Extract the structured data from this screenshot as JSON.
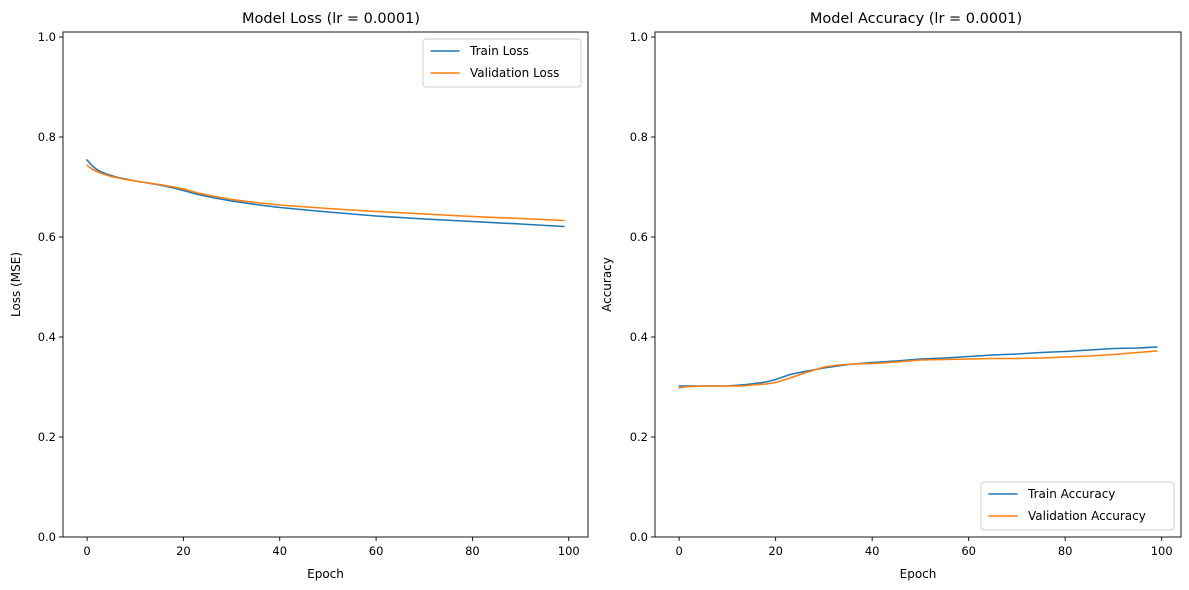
{
  "chart_data": [
    {
      "type": "line",
      "title": "Model Loss (lr = 0.0001)",
      "xlabel": "Epoch",
      "ylabel": "Loss (MSE)",
      "xlim": [
        -5,
        104
      ],
      "ylim": [
        0,
        1.01
      ],
      "xticks": [
        0,
        20,
        40,
        60,
        80,
        100
      ],
      "yticks": [
        0.0,
        0.2,
        0.4,
        0.6,
        0.8,
        1.0
      ],
      "xtick_labels": [
        "0",
        "20",
        "40",
        "60",
        "80",
        "100"
      ],
      "ytick_labels": [
        "0.0",
        "0.2",
        "0.4",
        "0.6",
        "0.8",
        "1.0"
      ],
      "grid": false,
      "legend_position": "upper right",
      "series": [
        {
          "name": "Train Loss",
          "color": "#1f77b4",
          "x": [
            0,
            1,
            2,
            3,
            4,
            5,
            6,
            8,
            10,
            12,
            15,
            18,
            20,
            23,
            26,
            30,
            35,
            40,
            50,
            60,
            70,
            80,
            90,
            99
          ],
          "y": [
            0.754,
            0.743,
            0.735,
            0.73,
            0.726,
            0.723,
            0.72,
            0.716,
            0.712,
            0.709,
            0.704,
            0.698,
            0.693,
            0.685,
            0.679,
            0.672,
            0.665,
            0.659,
            0.65,
            0.642,
            0.636,
            0.631,
            0.626,
            0.621
          ]
        },
        {
          "name": "Validation Loss",
          "color": "#ff7f0e",
          "x": [
            0,
            1,
            2,
            3,
            4,
            5,
            6,
            8,
            10,
            12,
            15,
            18,
            20,
            23,
            26,
            30,
            35,
            40,
            50,
            60,
            70,
            80,
            90,
            99
          ],
          "y": [
            0.743,
            0.736,
            0.731,
            0.727,
            0.724,
            0.721,
            0.719,
            0.715,
            0.712,
            0.709,
            0.705,
            0.7,
            0.696,
            0.688,
            0.682,
            0.675,
            0.669,
            0.664,
            0.657,
            0.651,
            0.646,
            0.641,
            0.637,
            0.633
          ]
        }
      ]
    },
    {
      "type": "line",
      "title": "Model Accuracy (lr = 0.0001)",
      "xlabel": "Epoch",
      "ylabel": "Accuracy",
      "xlim": [
        -5,
        104
      ],
      "ylim": [
        0,
        1.01
      ],
      "xticks": [
        0,
        20,
        40,
        60,
        80,
        100
      ],
      "yticks": [
        0.0,
        0.2,
        0.4,
        0.6,
        0.8,
        1.0
      ],
      "xtick_labels": [
        "0",
        "20",
        "40",
        "60",
        "80",
        "100"
      ],
      "ytick_labels": [
        "0.0",
        "0.2",
        "0.4",
        "0.6",
        "0.8",
        "1.0"
      ],
      "grid": false,
      "legend_position": "lower right",
      "series": [
        {
          "name": "Train Accuracy",
          "color": "#1f77b4",
          "x": [
            0,
            5,
            10,
            14,
            18,
            20,
            23,
            26,
            30,
            35,
            40,
            45,
            50,
            55,
            60,
            65,
            70,
            75,
            80,
            85,
            90,
            95,
            99
          ],
          "y": [
            0.302,
            0.302,
            0.302,
            0.305,
            0.31,
            0.315,
            0.325,
            0.331,
            0.338,
            0.345,
            0.349,
            0.352,
            0.356,
            0.358,
            0.361,
            0.364,
            0.366,
            0.369,
            0.371,
            0.374,
            0.377,
            0.378,
            0.38
          ]
        },
        {
          "name": "Validation Accuracy",
          "color": "#ff7f0e",
          "x": [
            0,
            1,
            3,
            5,
            8,
            10,
            13,
            15,
            18,
            20,
            23,
            26,
            30,
            33,
            36,
            40,
            45,
            50,
            55,
            60,
            65,
            70,
            75,
            80,
            85,
            90,
            95,
            99
          ],
          "y": [
            0.298,
            0.3,
            0.301,
            0.302,
            0.302,
            0.302,
            0.302,
            0.304,
            0.306,
            0.309,
            0.318,
            0.328,
            0.34,
            0.344,
            0.346,
            0.347,
            0.35,
            0.354,
            0.355,
            0.356,
            0.357,
            0.357,
            0.358,
            0.36,
            0.362,
            0.365,
            0.369,
            0.372
          ]
        }
      ]
    }
  ]
}
